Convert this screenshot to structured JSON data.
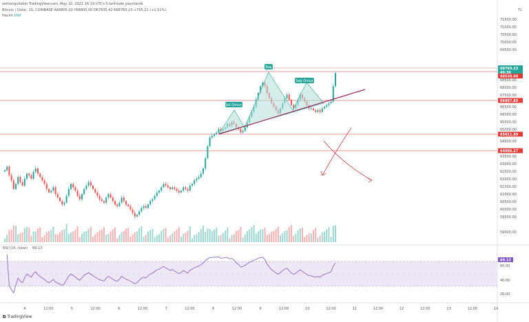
{
  "header": {
    "caption": "serhangultekin TradingView.com, May 10, 2021 16:19 UTC+3 tarihinde yayınlandı",
    "symbol_line": "Bitcoin / Dolar, 1S, COINBASE  A68805,02  Y68800,00  D67935,42  K68760,23  +755,21 (+1,11%)",
    "volume_label": "Hacim",
    "volume_value": "kNA"
  },
  "colors": {
    "up": "#26a69a",
    "down": "#ef5350",
    "level_line": "#e57373",
    "trend_line": "#9c2d5a",
    "rsi": "#7e57c2",
    "rsi_band": "#ede7f6",
    "pattern_fill": "#b2dfdb",
    "level_tag": "#e53935",
    "price_tag": "#26a69a"
  },
  "price_axis": {
    "ticks": [
      "71500.00",
      "71000.00",
      "70500.00",
      "70000.00",
      "69500.00",
      "68500.00",
      "68000.00",
      "67500.00",
      "67000.00",
      "66500.00",
      "66000.00",
      "65500.00",
      "65000.00",
      "64500.00",
      "64000.00",
      "63500.00",
      "63000.00",
      "62500.00",
      "62000.00",
      "61500.00",
      "61000.00",
      "60500.00",
      "60000.00",
      "59500.00",
      "59000.00"
    ],
    "range": [
      58900,
      71900
    ],
    "scale_label": "TL"
  },
  "price_tags": {
    "current": "68760.23",
    "countdown": "40:39",
    "level_1": "68538.00",
    "level_2": "66887.80",
    "level_3": "65011.89",
    "level_4": "64006.27"
  },
  "annotations": {
    "head": "Baş",
    "left_shoulder": "Sol Omuz",
    "right_shoulder": "Sağ Omuz"
  },
  "rsi": {
    "label": "RSI (14, close)",
    "value": "69.13",
    "ticks": [
      "80.00",
      "60.00",
      "40.00",
      "20.00"
    ],
    "range": [
      0,
      100
    ],
    "band": [
      30,
      70
    ]
  },
  "time_axis": {
    "labels": [
      "4",
      "12:00",
      "5",
      "12:00",
      "6",
      "12:00",
      "7",
      "12:00",
      "8",
      "12:00",
      "9",
      "12:00",
      "10",
      "12:00",
      "11",
      "12:00",
      "12",
      "12:00",
      "13",
      "12:00",
      "14"
    ]
  },
  "logo": "TradingView",
  "chart_data": {
    "type": "candlestick",
    "title": "Bitcoin / Dolar, 1S, COINBASE",
    "ylim": [
      58900,
      71900
    ],
    "horizontal_levels": [
      68538.0,
      66887.8,
      65011.89,
      64006.27
    ],
    "close": [
      63100,
      63300,
      62800,
      62500,
      62000,
      62300,
      62700,
      62400,
      62200,
      62600,
      62900,
      62800,
      62600,
      63000,
      63200,
      62900,
      62700,
      62500,
      62300,
      62000,
      61800,
      61900,
      62100,
      61700,
      61500,
      61300,
      61100,
      61200,
      61600,
      62000,
      62300,
      62100,
      61900,
      61600,
      61400,
      61700,
      62000,
      62200,
      62400,
      62200,
      62000,
      61800,
      61600,
      61400,
      61300,
      61200,
      61500,
      61700,
      61500,
      61300,
      61100,
      61000,
      61200,
      61500,
      61300,
      61100,
      61000,
      60800,
      60600,
      60400,
      60500,
      60700,
      60900,
      61000,
      60900,
      61100,
      61300,
      61400,
      61600,
      61800,
      61900,
      62100,
      62300,
      62200,
      62100,
      62000,
      62100,
      62000,
      61900,
      61800,
      61900,
      62100,
      62000,
      61900,
      62200,
      62300,
      62500,
      62600,
      62700,
      62900,
      63200,
      63800,
      64500,
      65000,
      65100,
      65200,
      65300,
      65500,
      65400,
      65500,
      65600,
      65800,
      65700,
      65900,
      65800,
      65600,
      65500,
      65300,
      65400,
      65600,
      65900,
      66200,
      66500,
      66800,
      67200,
      67600,
      68000,
      68200,
      68000,
      67600,
      67300,
      67000,
      66800,
      66600,
      66400,
      66700,
      67000,
      67300,
      67500,
      67200,
      66900,
      66700,
      66900,
      67200,
      67500,
      67300,
      67100,
      66900,
      66700,
      66700,
      66600,
      66500,
      66600,
      66500,
      66700,
      66800,
      66900,
      67000,
      67100,
      68000,
      68760
    ]
  }
}
